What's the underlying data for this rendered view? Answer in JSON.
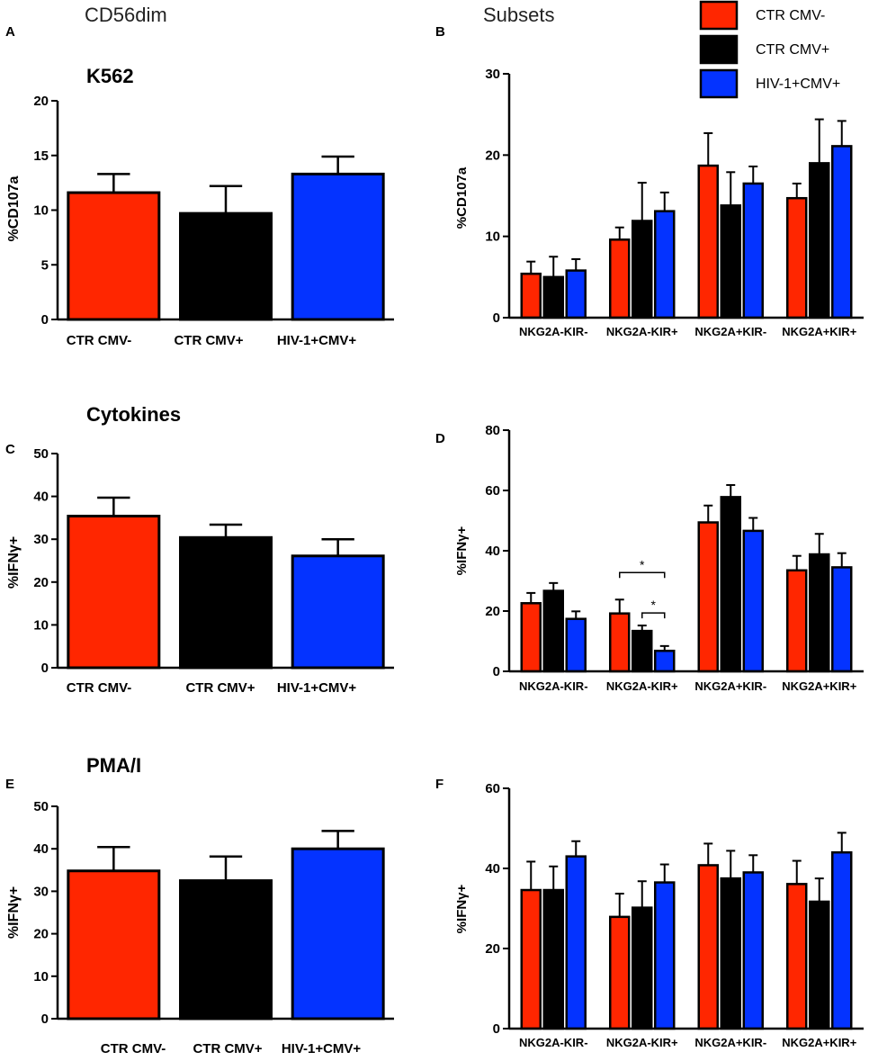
{
  "headers": {
    "left": "CD56dim",
    "right": "Subsets"
  },
  "colors": {
    "red": "#ff2600",
    "black": "#000000",
    "blue": "#0433ff",
    "axis": "#000000"
  },
  "legend": [
    {
      "label": "CTR CMV-",
      "color": "#ff2600"
    },
    {
      "label": "CTR CMV+",
      "color": "#000000"
    },
    {
      "label": "HIV-1+CMV+",
      "color": "#0433ff"
    }
  ],
  "chart_data": [
    {
      "id": "A",
      "panel_label": "A",
      "type": "bar",
      "title": "K562",
      "ylabel": "%CD107a",
      "ylim": [
        0,
        20
      ],
      "yticks": [
        0,
        5,
        10,
        15,
        20
      ],
      "categories": [
        "CTR CMV-",
        "CTR CMV+",
        "HIV-1+CMV+"
      ],
      "values": [
        11.6,
        9.7,
        13.3
      ],
      "errors": [
        1.7,
        2.5,
        1.6
      ]
    },
    {
      "id": "B",
      "panel_label": "B",
      "type": "bar",
      "title": "",
      "ylabel": "%CD107a",
      "ylim": [
        0,
        30
      ],
      "yticks": [
        0,
        10,
        20,
        30
      ],
      "categories": [
        "NKG2A-KIR-",
        "NKG2A-KIR+",
        "NKG2A+KIR-",
        "NKG2A+KIR+"
      ],
      "series": [
        {
          "name": "CTR CMV-",
          "values": [
            5.4,
            9.6,
            18.7,
            14.7
          ],
          "errors": [
            1.5,
            1.5,
            4.0,
            1.8
          ]
        },
        {
          "name": "CTR CMV+",
          "values": [
            5.0,
            11.9,
            13.8,
            19.0
          ],
          "errors": [
            2.5,
            4.7,
            4.1,
            5.4
          ]
        },
        {
          "name": "HIV-1+CMV+",
          "values": [
            5.8,
            13.1,
            16.5,
            21.1
          ],
          "errors": [
            1.4,
            2.3,
            2.1,
            3.1
          ]
        }
      ]
    },
    {
      "id": "C",
      "panel_label": "C",
      "type": "bar",
      "title": "Cytokines",
      "ylabel": "%IFNγ+",
      "ylim": [
        0,
        50
      ],
      "yticks": [
        0,
        10,
        20,
        30,
        40,
        50
      ],
      "categories": [
        "CTR CMV-",
        "CTR CMV+",
        "HIV-1+CMV+"
      ],
      "values": [
        35.4,
        30.4,
        26.1
      ],
      "errors": [
        4.3,
        3.0,
        3.9
      ]
    },
    {
      "id": "D",
      "panel_label": "D",
      "type": "bar",
      "title": "",
      "ylabel": "%IFNγ+",
      "ylim": [
        0,
        80
      ],
      "yticks": [
        0,
        20,
        40,
        60,
        80
      ],
      "categories": [
        "NKG2A-KIR-",
        "NKG2A-KIR+",
        "NKG2A+KIR-",
        "NKG2A+KIR+"
      ],
      "series": [
        {
          "name": "CTR CMV-",
          "values": [
            22.6,
            19.2,
            49.4,
            33.5
          ],
          "errors": [
            3.4,
            4.6,
            5.6,
            4.8
          ]
        },
        {
          "name": "CTR CMV+",
          "values": [
            26.7,
            13.4,
            57.8,
            38.8
          ],
          "errors": [
            2.6,
            1.8,
            4.0,
            6.8
          ]
        },
        {
          "name": "HIV-1+CMV+",
          "values": [
            17.4,
            6.8,
            46.6,
            34.5
          ],
          "errors": [
            2.5,
            1.6,
            4.3,
            4.7
          ]
        }
      ],
      "annotations": [
        {
          "text": "*",
          "from": [
            1,
            0
          ],
          "to": [
            1,
            2
          ]
        },
        {
          "text": "*",
          "from": [
            1,
            1
          ],
          "to": [
            1,
            2
          ]
        }
      ]
    },
    {
      "id": "E",
      "panel_label": "E",
      "type": "bar",
      "title": "PMA/I",
      "ylabel": "%IFNγ+",
      "ylim": [
        0,
        50
      ],
      "yticks": [
        0,
        10,
        20,
        30,
        40,
        50
      ],
      "categories": [
        "CTR CMV-",
        "CTR CMV+",
        "HIV-1+CMV+"
      ],
      "values": [
        34.8,
        32.5,
        40.0
      ],
      "errors": [
        5.6,
        5.7,
        4.2
      ]
    },
    {
      "id": "F",
      "panel_label": "F",
      "type": "bar",
      "title": "",
      "ylabel": "%IFNγ+",
      "ylim": [
        0,
        60
      ],
      "yticks": [
        0,
        20,
        40,
        60
      ],
      "categories": [
        "NKG2A-KIR-",
        "NKG2A-KIR+",
        "NKG2A+KIR-",
        "NKG2A+KIR+"
      ],
      "series": [
        {
          "name": "CTR CMV-",
          "values": [
            34.6,
            27.9,
            40.8,
            36.1
          ],
          "errors": [
            7.1,
            5.8,
            5.4,
            5.8
          ]
        },
        {
          "name": "CTR CMV+",
          "values": [
            34.6,
            30.2,
            37.5,
            31.7
          ],
          "errors": [
            5.9,
            6.6,
            6.9,
            5.8
          ]
        },
        {
          "name": "HIV-1+CMV+",
          "values": [
            43.0,
            36.5,
            39.0,
            44.0
          ],
          "errors": [
            3.8,
            4.5,
            4.3,
            4.9
          ]
        }
      ]
    }
  ]
}
